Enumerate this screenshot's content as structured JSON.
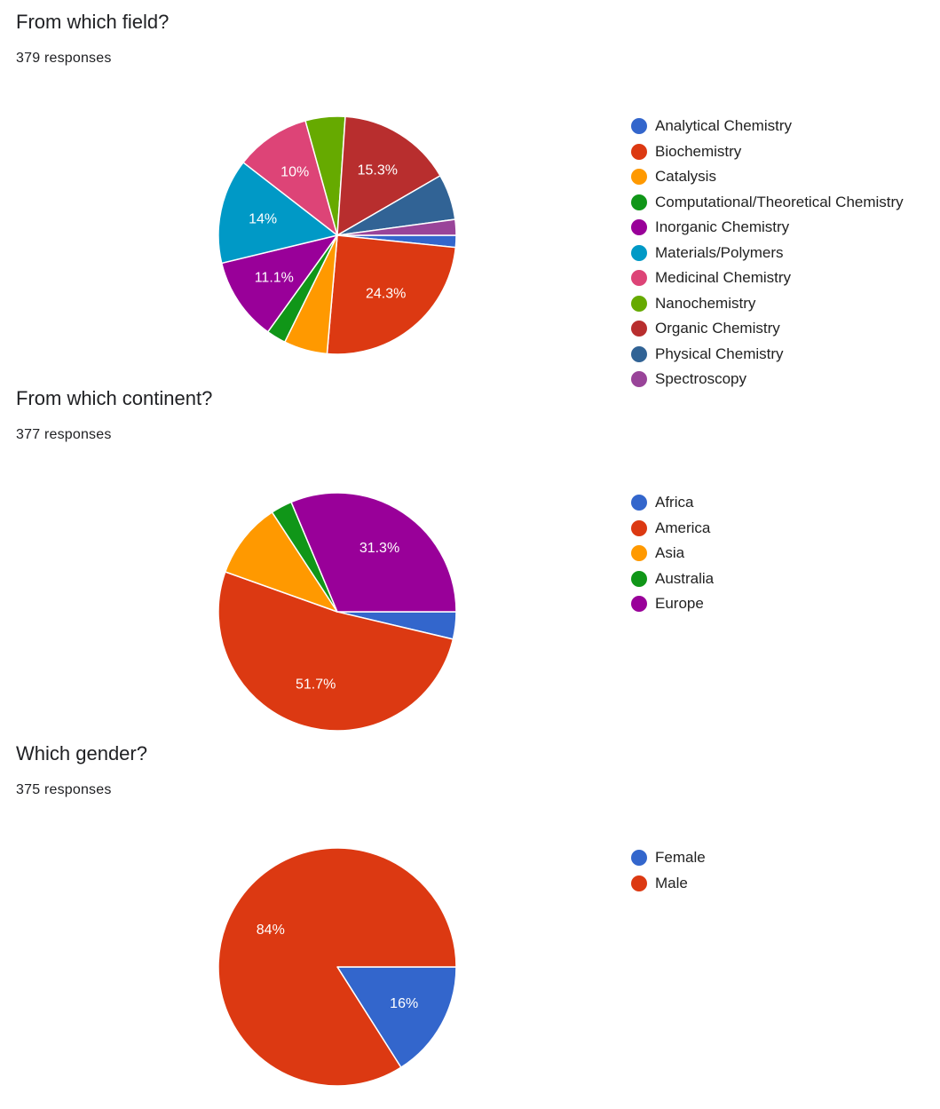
{
  "chart_data": [
    {
      "type": "pie",
      "title": "From which field?",
      "subtitle": "379 responses",
      "legend_position": "right",
      "slices": [
        {
          "label": "Analytical Chemistry",
          "percent": 1.6,
          "color": "#3366cc",
          "display": ""
        },
        {
          "label": "Biochemistry",
          "percent": 24.3,
          "color": "#dc3912",
          "display": "24.3%"
        },
        {
          "label": "Catalysis",
          "percent": 5.8,
          "color": "#ff9900",
          "display": ""
        },
        {
          "label": "Computational/Theoretical Chemistry",
          "percent": 2.6,
          "color": "#109618",
          "display": ""
        },
        {
          "label": "Inorganic Chemistry",
          "percent": 11.1,
          "color": "#990099",
          "display": "11.1%"
        },
        {
          "label": "Materials/Polymers",
          "percent": 14.0,
          "color": "#0099c6",
          "display": "14%"
        },
        {
          "label": "Medicinal Chemistry",
          "percent": 10.0,
          "color": "#dd4477",
          "display": "10%"
        },
        {
          "label": "Nanochemistry",
          "percent": 5.3,
          "color": "#66aa00",
          "display": ""
        },
        {
          "label": "Organic Chemistry",
          "percent": 15.3,
          "color": "#b82e2e",
          "display": "15.3%"
        },
        {
          "label": "Physical Chemistry",
          "percent": 6.1,
          "color": "#316395",
          "display": ""
        },
        {
          "label": "Spectroscopy",
          "percent": 2.1,
          "color": "#994499",
          "display": ""
        }
      ]
    },
    {
      "type": "pie",
      "title": "From which continent?",
      "subtitle": "377 responses",
      "legend_position": "right",
      "slices": [
        {
          "label": "Africa",
          "percent": 3.7,
          "color": "#3366cc",
          "display": ""
        },
        {
          "label": "America",
          "percent": 51.7,
          "color": "#dc3912",
          "display": "51.7%"
        },
        {
          "label": "Asia",
          "percent": 10.3,
          "color": "#ff9900",
          "display": ""
        },
        {
          "label": "Australia",
          "percent": 2.9,
          "color": "#109618",
          "display": ""
        },
        {
          "label": "Europe",
          "percent": 31.3,
          "color": "#990099",
          "display": "31.3%"
        }
      ]
    },
    {
      "type": "pie",
      "title": "Which gender?",
      "subtitle": "375 responses",
      "legend_position": "right",
      "slices": [
        {
          "label": "Female",
          "percent": 16.0,
          "color": "#3366cc",
          "display": "16%"
        },
        {
          "label": "Male",
          "percent": 84.0,
          "color": "#dc3912",
          "display": "84%"
        }
      ]
    }
  ]
}
